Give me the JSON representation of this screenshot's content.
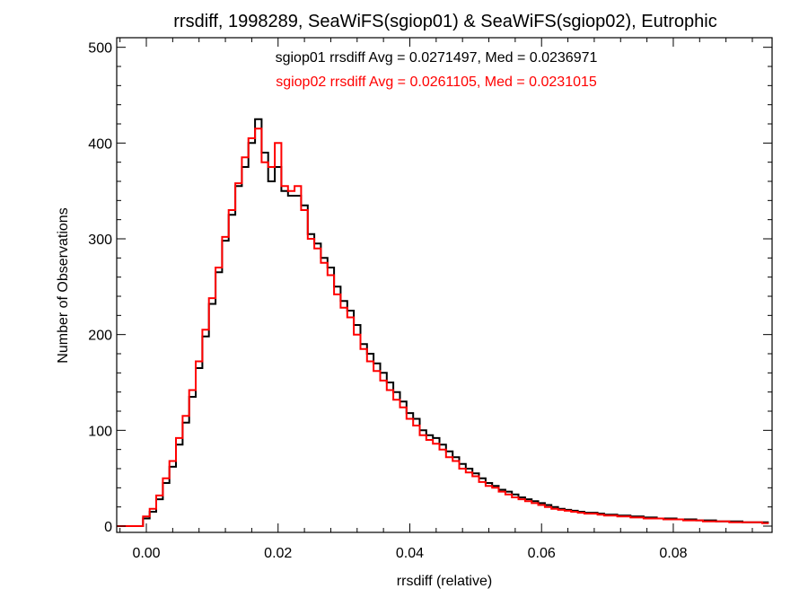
{
  "chart_data": {
    "type": "histogram",
    "title": "rrsdiff, 1998289, SeaWiFS(sgiop01) & SeaWiFS(sgiop02), Eutrophic",
    "xlabel": "rrsdiff (relative)",
    "ylabel": "Number of Observations",
    "xlim": [
      -0.0045,
      0.095
    ],
    "ylim": [
      0,
      510
    ],
    "xticks": [
      0.0,
      0.02,
      0.04,
      0.06,
      0.08
    ],
    "xtick_labels": [
      "0.00",
      "0.02",
      "0.04",
      "0.06",
      "0.08"
    ],
    "yticks": [
      0,
      100,
      200,
      300,
      400,
      500
    ],
    "ytick_labels": [
      "0",
      "100",
      "200",
      "300",
      "400",
      "500"
    ],
    "bin_width": 0.001,
    "grid": false,
    "legend_position": "top-center",
    "annotations": [
      "sgiop01 rrsdiff Avg = 0.0271497, Med = 0.0236971",
      "sgiop02 rrsdiff Avg = 0.0261105, Med = 0.0231015"
    ],
    "series": [
      {
        "color": "#000000",
        "x": [
          -0.004,
          -0.003,
          -0.002,
          -0.001,
          0.0,
          0.001,
          0.002,
          0.003,
          0.004,
          0.005,
          0.006,
          0.007,
          0.008,
          0.009,
          0.01,
          0.011,
          0.012,
          0.013,
          0.014,
          0.015,
          0.016,
          0.017,
          0.018,
          0.019,
          0.02,
          0.021,
          0.022,
          0.023,
          0.024,
          0.025,
          0.026,
          0.027,
          0.028,
          0.029,
          0.03,
          0.031,
          0.032,
          0.033,
          0.034,
          0.035,
          0.036,
          0.037,
          0.038,
          0.039,
          0.04,
          0.041,
          0.042,
          0.043,
          0.044,
          0.045,
          0.046,
          0.047,
          0.048,
          0.049,
          0.05,
          0.051,
          0.052,
          0.053,
          0.054,
          0.055,
          0.056,
          0.057,
          0.058,
          0.059,
          0.06,
          0.061,
          0.062,
          0.063,
          0.064,
          0.065,
          0.066,
          0.067,
          0.068,
          0.069,
          0.07,
          0.071,
          0.072,
          0.073,
          0.074,
          0.075,
          0.076,
          0.077,
          0.078,
          0.079,
          0.08,
          0.081,
          0.082,
          0.083,
          0.084,
          0.085,
          0.086,
          0.087,
          0.088,
          0.089,
          0.09,
          0.091,
          0.092,
          0.093,
          0.094
        ],
        "values": [
          0,
          0,
          0,
          0,
          8,
          15,
          28,
          45,
          62,
          85,
          108,
          135,
          165,
          198,
          232,
          265,
          298,
          325,
          355,
          375,
          400,
          425,
          390,
          360,
          375,
          350,
          345,
          345,
          335,
          305,
          295,
          280,
          270,
          250,
          235,
          225,
          210,
          190,
          180,
          170,
          160,
          150,
          140,
          130,
          118,
          112,
          100,
          95,
          92,
          85,
          78,
          72,
          65,
          60,
          55,
          50,
          45,
          42,
          38,
          36,
          33,
          30,
          28,
          26,
          24,
          22,
          20,
          18,
          17,
          16,
          15,
          14,
          14,
          13,
          12,
          12,
          11,
          11,
          10,
          10,
          9,
          9,
          8,
          8,
          8,
          7,
          7,
          7,
          6,
          6,
          6,
          5,
          5,
          5,
          5,
          4,
          4,
          4,
          4
        ]
      },
      {
        "color": "#ff0000",
        "x": [
          -0.004,
          -0.003,
          -0.002,
          -0.001,
          0.0,
          0.001,
          0.002,
          0.003,
          0.004,
          0.005,
          0.006,
          0.007,
          0.008,
          0.009,
          0.01,
          0.011,
          0.012,
          0.013,
          0.014,
          0.015,
          0.016,
          0.017,
          0.018,
          0.019,
          0.02,
          0.021,
          0.022,
          0.023,
          0.024,
          0.025,
          0.026,
          0.027,
          0.028,
          0.029,
          0.03,
          0.031,
          0.032,
          0.033,
          0.034,
          0.035,
          0.036,
          0.037,
          0.038,
          0.039,
          0.04,
          0.041,
          0.042,
          0.043,
          0.044,
          0.045,
          0.046,
          0.047,
          0.048,
          0.049,
          0.05,
          0.051,
          0.052,
          0.053,
          0.054,
          0.055,
          0.056,
          0.057,
          0.058,
          0.059,
          0.06,
          0.061,
          0.062,
          0.063,
          0.064,
          0.065,
          0.066,
          0.067,
          0.068,
          0.069,
          0.07,
          0.071,
          0.072,
          0.073,
          0.074,
          0.075,
          0.076,
          0.077,
          0.078,
          0.079,
          0.08,
          0.081,
          0.082,
          0.083,
          0.084,
          0.085,
          0.086,
          0.087,
          0.088,
          0.089,
          0.09,
          0.091,
          0.092,
          0.093,
          0.094
        ],
        "values": [
          0,
          0,
          0,
          0,
          10,
          18,
          32,
          50,
          68,
          92,
          115,
          142,
          172,
          205,
          238,
          270,
          302,
          330,
          358,
          385,
          405,
          415,
          380,
          375,
          400,
          355,
          350,
          355,
          330,
          300,
          290,
          275,
          262,
          242,
          228,
          218,
          200,
          185,
          172,
          162,
          152,
          142,
          132,
          124,
          112,
          105,
          95,
          90,
          86,
          80,
          72,
          68,
          60,
          56,
          52,
          46,
          42,
          40,
          36,
          33,
          30,
          28,
          26,
          24,
          22,
          20,
          18,
          17,
          16,
          15,
          14,
          13,
          13,
          12,
          11,
          11,
          10,
          10,
          9,
          9,
          8,
          8,
          8,
          7,
          7,
          7,
          6,
          6,
          6,
          5,
          5,
          5,
          5,
          4,
          4,
          4,
          4,
          4,
          3
        ]
      }
    ]
  }
}
